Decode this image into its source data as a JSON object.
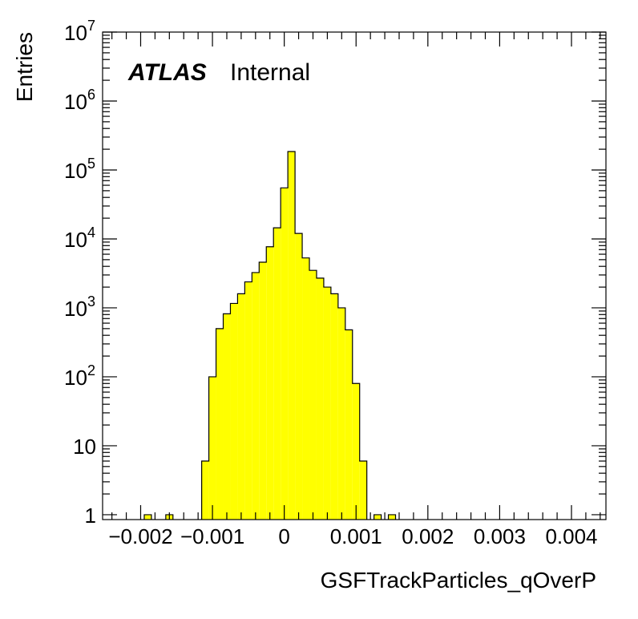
{
  "chart_data": {
    "type": "bar",
    "style": "histogram",
    "xlabel": "GSFTrackParticles_qOverP",
    "ylabel": "Entries",
    "xlim": [
      -0.00253,
      0.00448
    ],
    "ylim": [
      0.85,
      10000000
    ],
    "yscale": "log",
    "bin_width": 0.0001,
    "bin_edges_range": [
      -0.0025,
      0.0045
    ],
    "fill_color": "#ffff00",
    "line_color": "#000000",
    "annotation": {
      "bold": "ATLAS",
      "normal": "Internal"
    },
    "xticks": [
      {
        "value": -0.002,
        "label": "−0.002"
      },
      {
        "value": -0.001,
        "label": "−0.001"
      },
      {
        "value": 0,
        "label": "0"
      },
      {
        "value": 0.001,
        "label": "0.001"
      },
      {
        "value": 0.002,
        "label": "0.002"
      },
      {
        "value": 0.003,
        "label": "0.003"
      },
      {
        "value": 0.004,
        "label": "0.004"
      }
    ],
    "yticks": [
      {
        "value": 1,
        "base": "1",
        "exp": ""
      },
      {
        "value": 10,
        "base": "10",
        "exp": ""
      },
      {
        "value": 100,
        "base": "10",
        "exp": "2"
      },
      {
        "value": 1000,
        "base": "10",
        "exp": "3"
      },
      {
        "value": 10000,
        "base": "10",
        "exp": "4"
      },
      {
        "value": 100000,
        "base": "10",
        "exp": "5"
      },
      {
        "value": 1000000,
        "base": "10",
        "exp": "6"
      },
      {
        "value": 10000000,
        "base": "10",
        "exp": "7"
      }
    ],
    "x": [
      -0.0019,
      -0.0016,
      -0.0011,
      -0.001,
      -0.0009,
      -0.0008,
      -0.0007,
      -0.0006,
      -0.0005,
      -0.0004,
      -0.0003,
      -0.0002,
      -0.0001,
      0.0,
      0.0001,
      0.0002,
      0.0003,
      0.0004,
      0.0005,
      0.0006,
      0.0007,
      0.0008,
      0.0009,
      0.001,
      0.0011,
      0.0013,
      0.0015
    ],
    "values": [
      1,
      1,
      6,
      100,
      500,
      820,
      1160,
      1600,
      2380,
      3250,
      4600,
      7700,
      14500,
      55000,
      185000,
      12000,
      5300,
      3500,
      2700,
      2000,
      1600,
      1000,
      480,
      80,
      6,
      1,
      1
    ]
  }
}
